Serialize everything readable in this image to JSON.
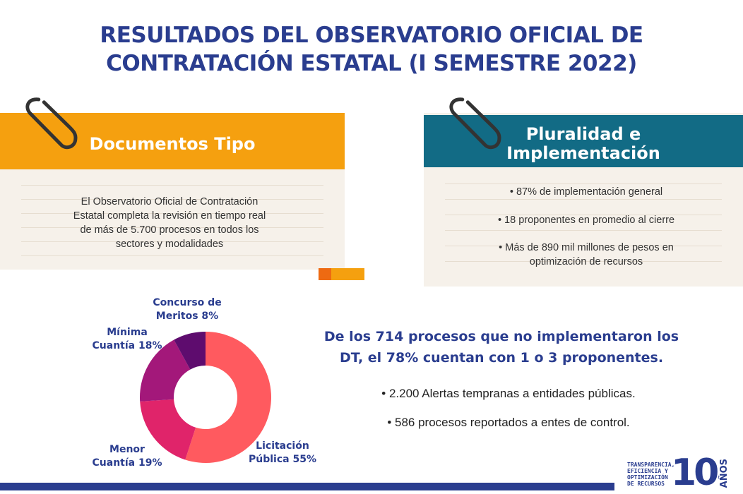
{
  "title": {
    "line1": "RESULTADOS DEL OBSERVATORIO OFICIAL DE",
    "line2": "CONTRATACIÓN ESTATAL (I SEMESTRE 2022)"
  },
  "card_left": {
    "header": "Documentos Tipo",
    "body": [
      "El Observatorio Oficial de Contratación",
      "Estatal completa la revisión en tiempo real",
      "de más de 5.700 procesos en todos los",
      "sectores y modalidades"
    ]
  },
  "card_right": {
    "header_line1": "Pluralidad e",
    "header_line2": "Implementación",
    "bullets": [
      "• 87% de implementación general",
      "• 18 proponentes en promedio al cierre",
      "• Más de 890 mil millones de pesos en",
      "optimización de recursos"
    ]
  },
  "stats": {
    "headline_line1": "De los 714 procesos que no implementaron los",
    "headline_line2": "DT, el 78% cuentan con 1 o 3 proponentes.",
    "bullets": [
      "• 2.200 Alertas tempranas a entidades públicas.",
      "• 586 procesos reportados a entes de control."
    ]
  },
  "logo": {
    "text_lines": [
      "TRANSPARENCIA,",
      "EFICIENCIA Y",
      "OPTIMIZACIÓN",
      "DE RECURSOS"
    ],
    "number": "10",
    "suffix": "AÑOS"
  },
  "colors": {
    "navy": "#2a3d8f",
    "orange": "#f5a00f",
    "teal": "#126b85",
    "card_bg": "#f6f1ea"
  },
  "chart_data": {
    "type": "pie",
    "donut": true,
    "categories": [
      "Licitación Pública",
      "Menor Cuantía",
      "Mínima Cuantía",
      "Concurso de Meritos"
    ],
    "values": [
      55,
      19,
      18,
      8
    ],
    "unit": "%",
    "colors": [
      "#ff5a5f",
      "#e0246a",
      "#a3187a",
      "#5e0c6e"
    ],
    "labels": [
      [
        "Licitación",
        "Pública 55%"
      ],
      [
        "Menor",
        "Cuantía 19%"
      ],
      [
        "Mínima",
        "Cuantía 18%"
      ],
      [
        "Concurso de",
        "Meritos 8%"
      ]
    ]
  }
}
